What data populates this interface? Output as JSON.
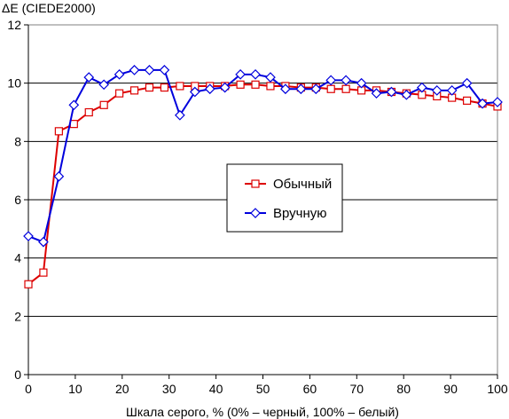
{
  "chart_data": {
    "type": "line",
    "title": "",
    "ylabel": "ΔE (CIEDE2000)",
    "xlabel": "Шкала серого, % (0% – черный, 100% – белый)",
    "xlim": [
      0,
      100
    ],
    "ylim": [
      0,
      12
    ],
    "x_ticks": [
      0,
      10,
      20,
      30,
      40,
      50,
      60,
      70,
      80,
      90,
      100
    ],
    "y_ticks": [
      0,
      2,
      4,
      6,
      8,
      10,
      12
    ],
    "grid": "horizontal",
    "legend_position": "center",
    "x": [
      0,
      3.2,
      6.5,
      9.7,
      12.9,
      16.1,
      19.4,
      22.6,
      25.8,
      29.0,
      32.3,
      35.5,
      38.7,
      41.9,
      45.2,
      48.4,
      51.6,
      54.8,
      58.1,
      61.3,
      64.5,
      67.7,
      71.0,
      74.2,
      77.4,
      80.6,
      83.9,
      87.1,
      90.3,
      93.5,
      96.8,
      100
    ],
    "series": [
      {
        "name": "Обычный",
        "color": "#dd0000",
        "marker": "square",
        "values": [
          3.1,
          3.5,
          8.35,
          8.6,
          9.0,
          9.25,
          9.65,
          9.75,
          9.85,
          9.85,
          9.9,
          9.9,
          9.9,
          9.9,
          9.95,
          9.95,
          9.9,
          9.9,
          9.85,
          9.85,
          9.8,
          9.8,
          9.75,
          9.75,
          9.7,
          9.65,
          9.6,
          9.55,
          9.5,
          9.4,
          9.3,
          9.2
        ]
      },
      {
        "name": "Вручную",
        "color": "#0000dd",
        "marker": "diamond",
        "values": [
          4.75,
          4.55,
          6.8,
          9.25,
          10.2,
          9.95,
          10.3,
          10.45,
          10.45,
          10.45,
          8.9,
          9.7,
          9.8,
          9.85,
          10.3,
          10.3,
          10.2,
          9.8,
          9.8,
          9.8,
          10.1,
          10.1,
          10.0,
          9.65,
          9.7,
          9.6,
          9.85,
          9.75,
          9.75,
          10.0,
          9.3,
          9.35
        ]
      }
    ]
  }
}
